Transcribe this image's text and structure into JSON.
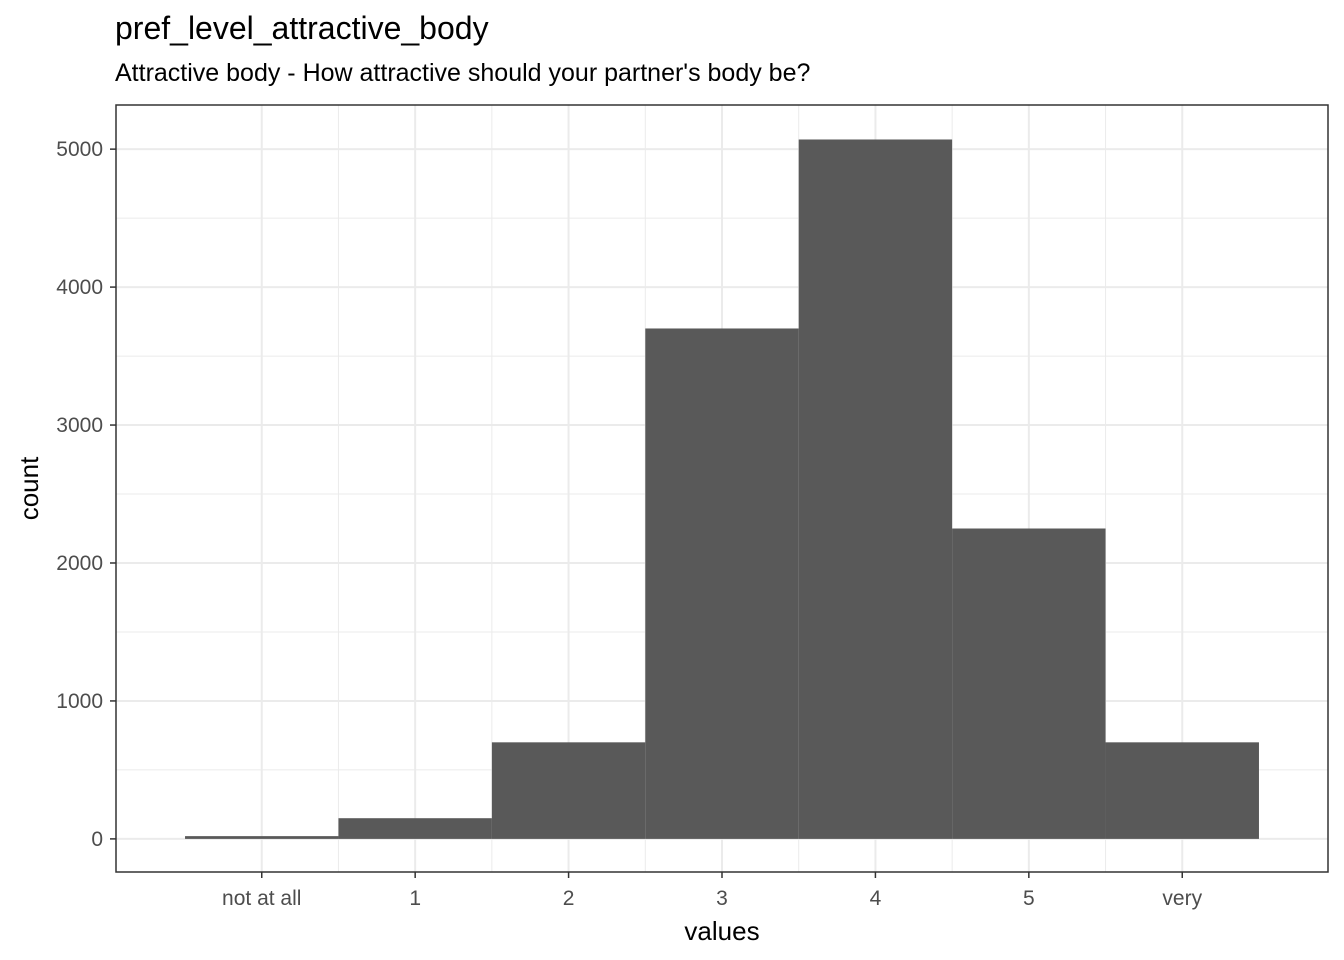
{
  "chart_data": {
    "type": "bar",
    "title": "pref_level_attractive_body",
    "subtitle": "Attractive body - How attractive should your partner's body be?",
    "xlabel": "values",
    "ylabel": "count",
    "categories": [
      "not at all",
      "1",
      "2",
      "3",
      "4",
      "5",
      "very"
    ],
    "values": [
      20,
      150,
      700,
      3700,
      5070,
      2250,
      700
    ],
    "y_ticks": [
      0,
      1000,
      2000,
      3000,
      4000,
      5000
    ],
    "ylim": [
      -240,
      5320
    ],
    "grid": true,
    "bar_color": "#595959",
    "grid_color": "#ebebeb",
    "panel_border_color": "#333333"
  }
}
